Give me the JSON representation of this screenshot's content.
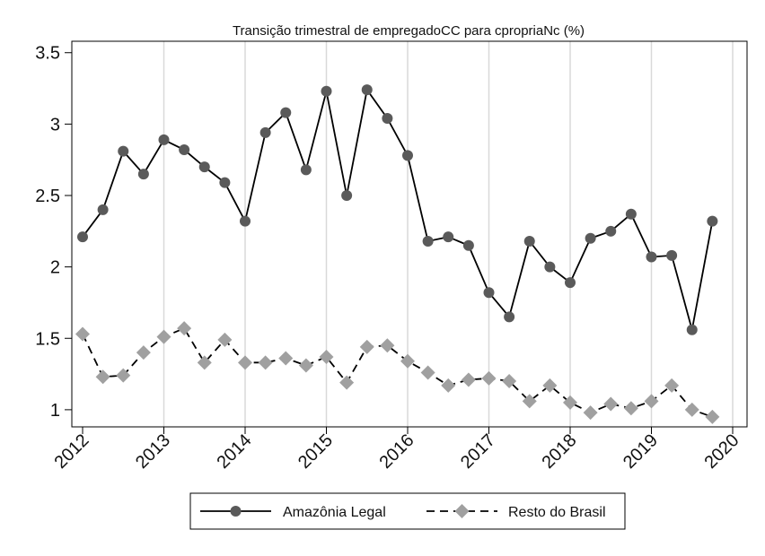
{
  "chart_data": {
    "type": "line",
    "title": "Transição trimestral de empregadoCC para cpropriaNc (%)",
    "xlabel": "",
    "ylabel": "",
    "x_ticks": [
      "2012",
      "2013",
      "2014",
      "2015",
      "2016",
      "2017",
      "2018",
      "2019",
      "2020"
    ],
    "y_ticks": [
      "1",
      "1.5",
      "2",
      "2.5",
      "3",
      "3.5"
    ],
    "ylim": [
      0.88,
      3.58
    ],
    "xlim": [
      2012,
      2020
    ],
    "grid": "vertical lines at year ticks",
    "legend_position": "bottom",
    "x": [
      2012.0,
      2012.25,
      2012.5,
      2012.75,
      2013.0,
      2013.25,
      2013.5,
      2013.75,
      2014.0,
      2014.25,
      2014.5,
      2014.75,
      2015.0,
      2015.25,
      2015.5,
      2015.75,
      2016.0,
      2016.25,
      2016.5,
      2016.75,
      2017.0,
      2017.25,
      2017.5,
      2017.75,
      2018.0,
      2018.25,
      2018.5,
      2018.75,
      2019.0,
      2019.25,
      2019.5,
      2019.75
    ],
    "series": [
      {
        "name": "Amazônia Legal",
        "color": "#000000",
        "marker": "circle",
        "marker_color": "#5a5a5a",
        "line_style": "solid",
        "values": [
          2.21,
          2.4,
          2.81,
          2.65,
          2.89,
          2.82,
          2.7,
          2.59,
          2.32,
          2.94,
          3.08,
          2.68,
          3.23,
          2.5,
          3.24,
          3.04,
          2.78,
          2.18,
          2.21,
          2.15,
          1.82,
          1.65,
          2.18,
          2.0,
          1.89,
          2.2,
          2.25,
          2.37,
          2.07,
          2.08,
          1.56,
          2.32
        ]
      },
      {
        "name": "Resto do Brasil",
        "color": "#000000",
        "marker": "diamond",
        "marker_color": "#a0a0a0",
        "line_style": "dashed",
        "values": [
          1.53,
          1.23,
          1.24,
          1.4,
          1.51,
          1.57,
          1.33,
          1.49,
          1.33,
          1.33,
          1.36,
          1.31,
          1.37,
          1.19,
          1.44,
          1.45,
          1.34,
          1.26,
          1.17,
          1.21,
          1.22,
          1.2,
          1.06,
          1.17,
          1.05,
          0.98,
          1.04,
          1.01,
          1.06,
          1.17,
          1.0,
          0.95
        ]
      }
    ]
  }
}
